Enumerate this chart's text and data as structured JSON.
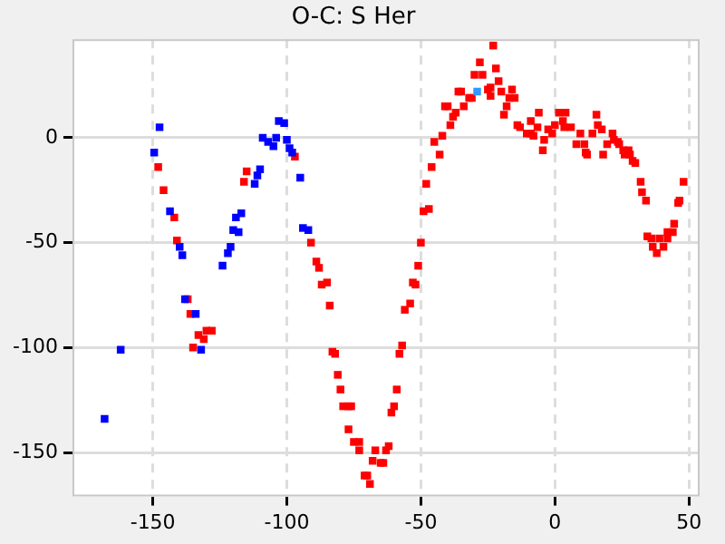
{
  "chart_data": {
    "type": "scatter",
    "title": "O-C: S Her",
    "xlim": [
      -180,
      54
    ],
    "ylim": [
      -171,
      47
    ],
    "xticks": [
      -150,
      -100,
      -50,
      0,
      50
    ],
    "yticks": [
      -150,
      -100,
      -50,
      0
    ],
    "grid": true,
    "legend": false,
    "marker": "square",
    "series": [
      {
        "color": "#0000ff",
        "x": [
          -168,
          -162,
          -149.5,
          -147.5,
          -143.6,
          -140,
          -139,
          -138,
          -134,
          -132,
          -124,
          -122,
          -121,
          -120,
          -119,
          -118,
          -117,
          -112,
          -111,
          -110,
          -109,
          -107,
          -105,
          -104,
          -103,
          -101,
          -100,
          -99,
          -98,
          -95,
          -94,
          -92
        ],
        "values": [
          -134,
          -101,
          -7,
          5,
          -35,
          -52,
          -56,
          -77,
          -84,
          -101,
          -61,
          -55,
          -52,
          -44,
          -38,
          -45,
          -36,
          -22,
          -18,
          -15,
          0,
          -2,
          -4,
          0,
          8,
          7,
          -1,
          -5,
          -7,
          -19,
          -43,
          -44
        ]
      },
      {
        "color": "#3399ff",
        "x": [
          -29
        ],
        "values": [
          22
        ]
      },
      {
        "color": "#ff0000",
        "x": [
          -148,
          -146,
          -142,
          -141,
          -137,
          -136,
          -135,
          -133,
          -131,
          -130,
          -128,
          -116,
          -115,
          -97,
          -91,
          -89,
          -88,
          -87,
          -85,
          -84,
          -83,
          -82,
          -81,
          -80,
          -79,
          -77,
          -76,
          -77,
          -75,
          -73,
          -73,
          -71,
          -70,
          -69,
          -68,
          -67,
          -65,
          -64,
          -63,
          -62,
          -61,
          -60,
          -59,
          -58,
          -57,
          -56,
          -54,
          -53,
          -52,
          -51,
          -50,
          -49,
          -47,
          -48,
          -46,
          -45,
          -43,
          -42,
          -41,
          -40,
          -39,
          -38,
          -37,
          -36,
          -35,
          -34,
          -32,
          -31,
          -30,
          -28,
          -27,
          -25,
          -24,
          -23,
          -22,
          -21,
          -24,
          -20,
          -19,
          -18,
          -17,
          -16,
          -15,
          -14,
          -13,
          -10.5,
          -9,
          -9,
          -8,
          -6.5,
          -6,
          -4.5,
          -4,
          -2.5,
          -1,
          0,
          1.5,
          3,
          3.5,
          4,
          6,
          8,
          9.5,
          11,
          11.5,
          12,
          14,
          15.5,
          16,
          17.5,
          18,
          19.5,
          21.5,
          22,
          23.5,
          24,
          25.5,
          26,
          27.5,
          28,
          29,
          30,
          32,
          32.5,
          34,
          34.5,
          36,
          36.5,
          38,
          39,
          40.5,
          42,
          42,
          44,
          44.5,
          46,
          46.5,
          48
        ],
        "values": [
          -14,
          -25,
          -38,
          -49,
          -77,
          -84,
          -100,
          -94,
          -96,
          -92,
          -92,
          -21,
          -16,
          -9,
          -50,
          -59,
          -62,
          -70,
          -69,
          -80,
          -102,
          -103,
          -113,
          -120,
          -128,
          -128,
          -128,
          -139,
          -145,
          -145,
          -149,
          -161,
          -161,
          -165,
          -154,
          -149,
          -155,
          -155,
          -149,
          -147,
          -131,
          -128,
          -120,
          -103,
          -99,
          -82,
          -79,
          -69,
          -70,
          -61,
          -50,
          -35,
          -34,
          -22,
          -14,
          -2,
          -8,
          1,
          15,
          15,
          6,
          10,
          12,
          22,
          22,
          15,
          19,
          19,
          30,
          36,
          30,
          23,
          20,
          44,
          33,
          27,
          24,
          22,
          11,
          15,
          19,
          23,
          19,
          6,
          5,
          2,
          2,
          8,
          1,
          5,
          12,
          -6,
          -1,
          4,
          2,
          6,
          12,
          8,
          5,
          12,
          5,
          -3,
          2,
          -3,
          -7,
          -8,
          2,
          11,
          6,
          4,
          -8,
          -3,
          2,
          -1,
          -2,
          -3,
          -6,
          -8,
          -6,
          -8,
          -11,
          -12,
          -21,
          -26,
          -30,
          -47,
          -48,
          -52,
          -55,
          -48,
          -52,
          -45,
          -48,
          -45,
          -41,
          -31,
          -30,
          -21
        ]
      }
    ]
  }
}
